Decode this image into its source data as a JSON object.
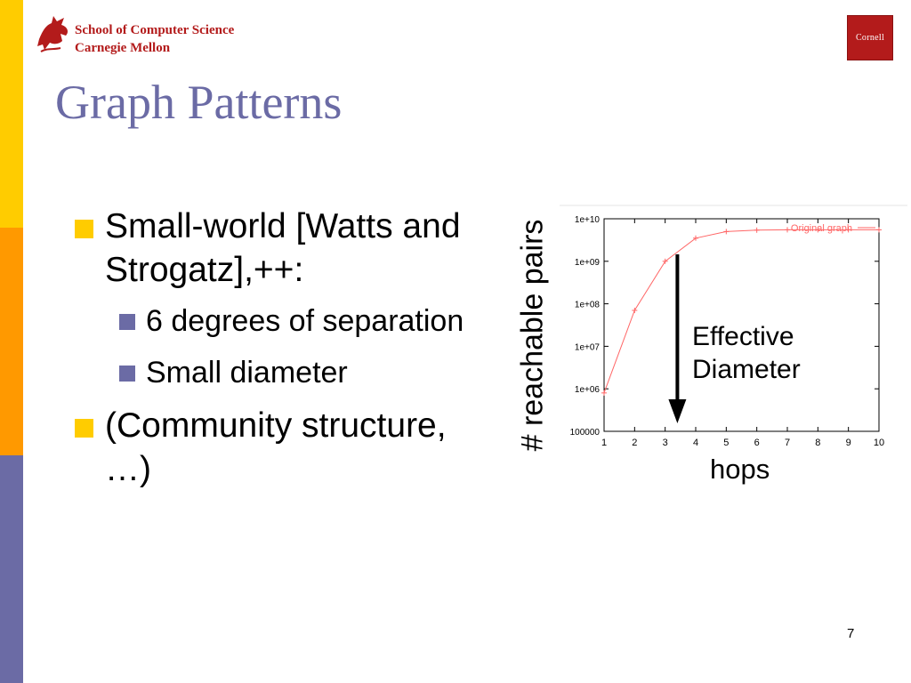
{
  "header": {
    "school_line1": "School of Computer Science",
    "school_line2": "Carnegie Mellon",
    "cornell": "Cornell"
  },
  "slide": {
    "title": "Graph Patterns",
    "bullets": [
      {
        "text": "Small-world [Watts and Strogatz],++:",
        "sub": [
          "6 degrees of separation",
          "Small diameter"
        ]
      },
      {
        "text": "(Community structure, …)",
        "sub": []
      }
    ],
    "page_number": "7"
  },
  "colors": {
    "yellow": "#ffcc00",
    "orange": "#ff9900",
    "purple": "#6b6ba5",
    "red": "#b31b1b",
    "series": "#ff6666"
  },
  "chart_data": {
    "type": "line",
    "ylabel": "# reachable pairs",
    "xlabel": "hops",
    "yscale": "log",
    "ylim": [
      100000,
      10000000000
    ],
    "xlim": [
      1,
      10
    ],
    "xticks": [
      "1",
      "2",
      "3",
      "4",
      "5",
      "6",
      "7",
      "8",
      "9",
      "10"
    ],
    "yticks": [
      "100000",
      "1e+06",
      "1e+07",
      "1e+08",
      "1e+09",
      "1e+10"
    ],
    "legend": "top-right",
    "series": [
      {
        "name": "Original graph",
        "x": [
          1,
          2,
          3,
          4,
          5,
          6,
          7,
          8,
          9,
          10
        ],
        "y": [
          800000,
          70000000,
          1000000000,
          3500000000,
          5000000000,
          5400000000,
          5500000000,
          5500000000,
          5500000000,
          5500000000
        ]
      }
    ],
    "annotation": {
      "line1": "Effective",
      "line2": "Diameter",
      "x": 3.4
    }
  }
}
